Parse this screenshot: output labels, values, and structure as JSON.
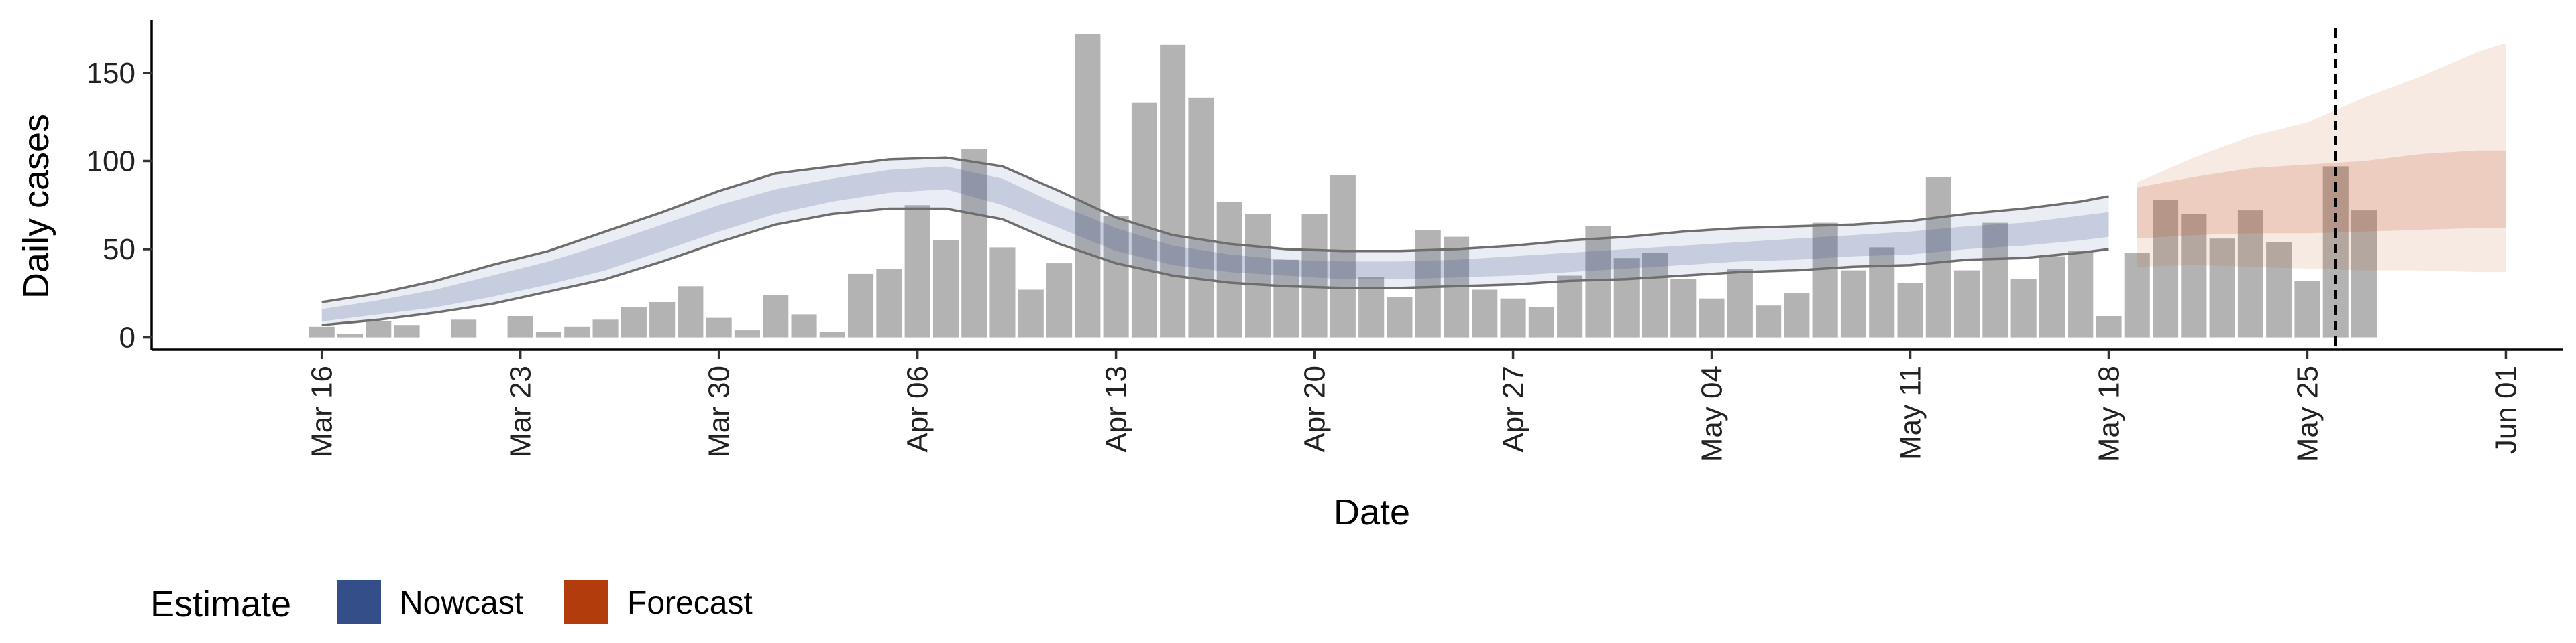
{
  "chart_data": {
    "type": "bar",
    "title": "",
    "xlabel": "Date",
    "ylabel": "Daily cases",
    "ylim": [
      -7,
      180
    ],
    "y_ticks": [
      0,
      50,
      100,
      150
    ],
    "y_tick_labels": [
      "0",
      "50",
      "100",
      "150"
    ],
    "start_date": "2020-03-16",
    "xlim_days": [
      -6,
      79
    ],
    "x_ticks": [
      {
        "day": 0,
        "label": "Mar 16"
      },
      {
        "day": 7,
        "label": "Mar 23"
      },
      {
        "day": 14,
        "label": "Mar 30"
      },
      {
        "day": 21,
        "label": "Apr 06"
      },
      {
        "day": 28,
        "label": "Apr 13"
      },
      {
        "day": 35,
        "label": "Apr 20"
      },
      {
        "day": 42,
        "label": "Apr 27"
      },
      {
        "day": 49,
        "label": "May 04"
      },
      {
        "day": 56,
        "label": "May 11"
      },
      {
        "day": 63,
        "label": "May 18"
      },
      {
        "day": 70,
        "label": "May 25"
      },
      {
        "day": 77,
        "label": "Jun 01"
      }
    ],
    "reported_cases": [
      6,
      2,
      9,
      7,
      0,
      10,
      0,
      12,
      3,
      6,
      10,
      17,
      20,
      29,
      11,
      4,
      24,
      13,
      3,
      36,
      39,
      75,
      55,
      107,
      51,
      27,
      42,
      172,
      69,
      133,
      166,
      136,
      77,
      70,
      44,
      70,
      92,
      34,
      23,
      61,
      57,
      27,
      22,
      17,
      35,
      63,
      45,
      48,
      33,
      22,
      39,
      18,
      25,
      65,
      38,
      51,
      31,
      91,
      38,
      65,
      33,
      46,
      49,
      12,
      48,
      78,
      70,
      56,
      72,
      54,
      32,
      97,
      72
    ],
    "nowcast": {
      "days": [
        0,
        2,
        4,
        6,
        8,
        10,
        12,
        14,
        16,
        18,
        20,
        22,
        24,
        26,
        28,
        30,
        32,
        34,
        36,
        38,
        40,
        42,
        44,
        46,
        48,
        50,
        52,
        54,
        56,
        58,
        60,
        62,
        63
      ],
      "median": [
        12,
        17,
        22,
        29,
        36,
        45,
        56,
        67,
        76,
        83,
        88,
        90,
        82,
        68,
        55,
        46,
        42,
        39,
        38,
        38,
        39,
        40,
        42,
        44,
        46,
        48,
        50,
        52,
        53,
        56,
        58,
        62,
        64
      ],
      "inner_lower": [
        9,
        13,
        17,
        23,
        30,
        38,
        49,
        60,
        70,
        77,
        82,
        84,
        75,
        62,
        49,
        41,
        37,
        35,
        33,
        33,
        34,
        35,
        37,
        39,
        41,
        43,
        44,
        46,
        47,
        50,
        52,
        55,
        57
      ],
      "inner_upper": [
        16,
        21,
        27,
        35,
        43,
        53,
        64,
        75,
        84,
        90,
        95,
        97,
        90,
        75,
        62,
        52,
        47,
        44,
        43,
        43,
        44,
        46,
        48,
        50,
        52,
        54,
        56,
        58,
        60,
        63,
        65,
        69,
        71
      ],
      "outer_lower": [
        7,
        10,
        14,
        19,
        26,
        33,
        43,
        54,
        64,
        70,
        73,
        73,
        67,
        53,
        42,
        35,
        31,
        29,
        28,
        28,
        29,
        30,
        32,
        33,
        35,
        37,
        38,
        40,
        41,
        44,
        45,
        48,
        50
      ],
      "outer_upper": [
        20,
        25,
        32,
        41,
        49,
        60,
        71,
        83,
        93,
        97,
        101,
        102,
        97,
        83,
        68,
        58,
        53,
        50,
        49,
        49,
        50,
        52,
        55,
        57,
        60,
        62,
        63,
        64,
        66,
        70,
        73,
        77,
        80
      ]
    },
    "forecast": {
      "days": [
        64,
        66,
        68,
        70,
        72,
        74,
        76,
        77
      ],
      "median": [
        73,
        76,
        78,
        80,
        82,
        84,
        86,
        86
      ],
      "inner_lower": [
        56,
        58,
        59,
        59,
        60,
        61,
        62,
        62
      ],
      "inner_upper": [
        85,
        91,
        96,
        98,
        100,
        104,
        106,
        106
      ],
      "outer_lower": [
        40,
        41,
        40,
        39,
        38,
        38,
        37,
        37
      ],
      "outer_upper": [
        88,
        102,
        114,
        122,
        136,
        148,
        162,
        167
      ]
    },
    "estimate_date_day": 71,
    "legend": {
      "title": "Estimate",
      "position": "bottom",
      "items": [
        {
          "label": "Nowcast",
          "color": "#344e8a"
        },
        {
          "label": "Forecast",
          "color": "#b23c0c"
        }
      ]
    },
    "colors": {
      "bars": "#b3b3b3",
      "nowcast": "#344e8a",
      "forecast": "#c0501a",
      "outer_line": "#6e6e6e",
      "estimate_line": "#000000"
    }
  }
}
